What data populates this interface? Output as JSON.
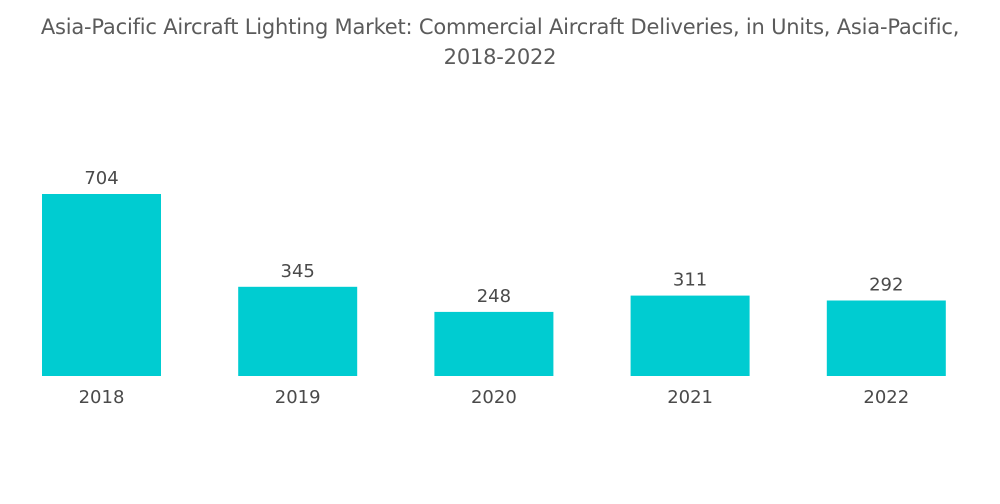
{
  "chart_data": {
    "type": "bar",
    "title_line1": "Asia-Pacific Aircraft Lighting Market: Commercial Aircraft Deliveries, in Units, Asia-Pacific,",
    "title_line2": "2018-2022",
    "categories": [
      "2018",
      "2019",
      "2020",
      "2021",
      "2022"
    ],
    "values": [
      704,
      345,
      248,
      311,
      292
    ],
    "xlabel": "",
    "ylabel": "",
    "ylim": [
      0,
      704
    ],
    "grid": false,
    "legend": "none",
    "bar_color": "#00ccd1"
  }
}
